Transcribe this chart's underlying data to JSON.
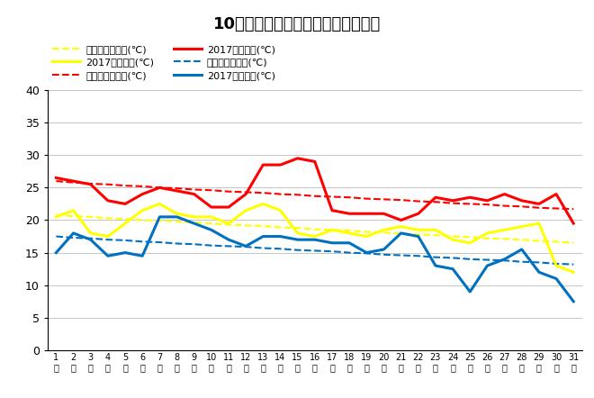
{
  "title": "10月最高・最低・平均気温（日別）",
  "days": [
    1,
    2,
    3,
    4,
    5,
    6,
    7,
    8,
    9,
    10,
    11,
    12,
    13,
    14,
    15,
    16,
    17,
    18,
    19,
    20,
    21,
    22,
    23,
    24,
    25,
    26,
    27,
    28,
    29,
    30,
    31
  ],
  "avg_normal": [
    20.8,
    20.6,
    20.5,
    20.3,
    20.2,
    20.0,
    19.9,
    19.8,
    19.6,
    19.5,
    19.3,
    19.2,
    19.1,
    18.9,
    18.8,
    18.6,
    18.5,
    18.4,
    18.2,
    18.1,
    17.9,
    17.8,
    17.7,
    17.5,
    17.4,
    17.2,
    17.1,
    17.0,
    16.8,
    16.7,
    16.5
  ],
  "max_normal": [
    26.0,
    25.8,
    25.6,
    25.5,
    25.3,
    25.2,
    25.0,
    24.9,
    24.7,
    24.6,
    24.4,
    24.3,
    24.2,
    24.0,
    23.9,
    23.7,
    23.6,
    23.5,
    23.3,
    23.2,
    23.1,
    22.9,
    22.8,
    22.6,
    22.5,
    22.4,
    22.2,
    22.1,
    21.9,
    21.8,
    21.7
  ],
  "min_normal": [
    17.5,
    17.3,
    17.2,
    17.0,
    16.9,
    16.7,
    16.6,
    16.4,
    16.3,
    16.1,
    16.0,
    15.9,
    15.7,
    15.6,
    15.4,
    15.3,
    15.2,
    15.0,
    14.9,
    14.7,
    14.6,
    14.5,
    14.3,
    14.2,
    14.0,
    13.9,
    13.8,
    13.6,
    13.5,
    13.3,
    13.2
  ],
  "avg_2017": [
    20.5,
    21.5,
    18.0,
    17.5,
    19.5,
    21.5,
    22.5,
    21.0,
    20.5,
    20.5,
    19.5,
    21.5,
    22.5,
    21.5,
    18.0,
    17.5,
    18.5,
    18.0,
    17.5,
    18.5,
    19.0,
    18.5,
    18.5,
    17.0,
    16.5,
    18.0,
    18.5,
    19.0,
    19.5,
    13.0,
    12.0
  ],
  "max_2017": [
    26.5,
    26.0,
    25.5,
    23.0,
    22.5,
    24.0,
    25.0,
    24.5,
    24.0,
    22.0,
    22.0,
    24.0,
    28.5,
    28.5,
    29.5,
    29.0,
    21.5,
    21.0,
    21.0,
    21.0,
    20.0,
    21.0,
    23.5,
    23.0,
    23.5,
    23.0,
    24.0,
    23.0,
    22.5,
    24.0,
    19.5
  ],
  "min_2017": [
    15.0,
    18.0,
    17.0,
    14.5,
    15.0,
    14.5,
    20.5,
    20.5,
    19.5,
    18.5,
    17.0,
    16.0,
    17.5,
    17.5,
    17.0,
    17.0,
    16.5,
    16.5,
    15.0,
    15.5,
    18.0,
    17.5,
    13.0,
    12.5,
    9.0,
    13.0,
    14.0,
    15.5,
    12.0,
    11.0,
    7.5
  ],
  "ylim": [
    0,
    40
  ],
  "yticks": [
    0,
    5,
    10,
    15,
    20,
    25,
    30,
    35,
    40
  ],
  "color_yellow": "#ffff00",
  "color_red": "#ff0000",
  "color_blue": "#0070c0",
  "legend_avg_normal": "平均気温平年値(℃)",
  "legend_max_normal": "最高気温平年値(℃)",
  "legend_min_normal": "最低気温平年値(℃)",
  "legend_avg_2017": "2017平均気温(℃)",
  "legend_max_2017": "2017最高気温(℃)",
  "legend_min_2017": "2017最低気温(℃)"
}
